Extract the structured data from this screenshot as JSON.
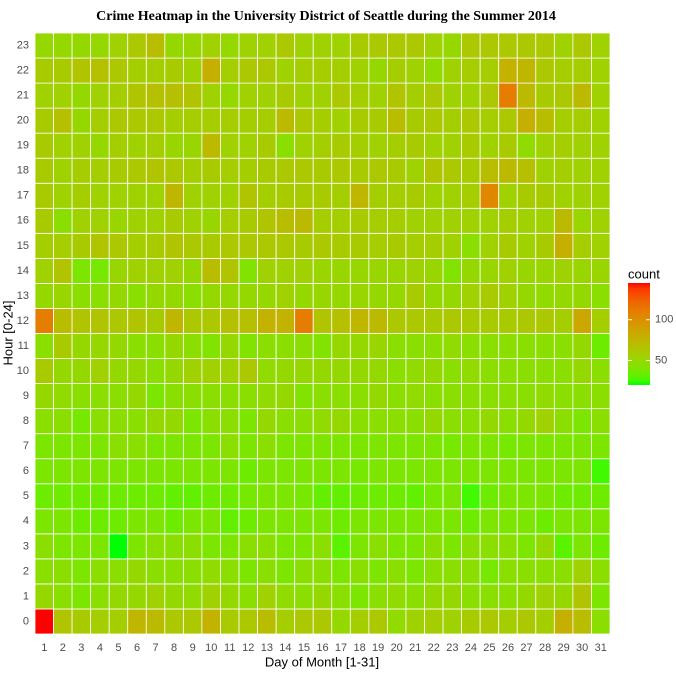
{
  "chart_data": {
    "type": "heatmap",
    "title": "Crime Heatmap in the University District of Seattle during the Summer 2014",
    "x_label": "Day of Month [1-31]",
    "y_label": "Hour [0-24]",
    "legend_title": "count",
    "x_categories": [
      1,
      2,
      3,
      4,
      5,
      6,
      7,
      8,
      9,
      10,
      11,
      12,
      13,
      14,
      15,
      16,
      17,
      18,
      19,
      20,
      21,
      22,
      23,
      24,
      25,
      26,
      27,
      28,
      29,
      30,
      31
    ],
    "y_categories": [
      0,
      1,
      2,
      3,
      4,
      5,
      6,
      7,
      8,
      9,
      10,
      11,
      12,
      13,
      14,
      15,
      16,
      17,
      18,
      19,
      20,
      21,
      22,
      23
    ],
    "low_color": "#00ff00",
    "high_color": "#ff0000",
    "fill_lim": [
      20,
      145
    ],
    "fill_ticks": [
      50,
      100
    ],
    "values": [
      [
        145,
        65,
        60,
        58,
        58,
        75,
        72,
        62,
        62,
        78,
        60,
        62,
        70,
        58,
        62,
        62,
        50,
        58,
        62,
        48,
        55,
        58,
        55,
        60,
        62,
        58,
        62,
        58,
        80,
        70,
        45
      ],
      [
        50,
        45,
        40,
        45,
        50,
        50,
        55,
        50,
        48,
        55,
        50,
        45,
        55,
        48,
        45,
        50,
        45,
        40,
        45,
        48,
        45,
        50,
        50,
        45,
        45,
        45,
        50,
        55,
        50,
        65,
        40
      ],
      [
        45,
        45,
        40,
        45,
        45,
        50,
        45,
        45,
        45,
        48,
        45,
        40,
        45,
        40,
        45,
        45,
        40,
        45,
        40,
        45,
        40,
        45,
        45,
        45,
        38,
        45,
        45,
        45,
        45,
        55,
        45
      ],
      [
        45,
        40,
        40,
        40,
        20,
        40,
        45,
        45,
        45,
        40,
        40,
        45,
        45,
        40,
        40,
        45,
        30,
        40,
        45,
        40,
        40,
        45,
        40,
        45,
        45,
        45,
        40,
        50,
        30,
        40,
        35
      ],
      [
        40,
        40,
        35,
        35,
        35,
        40,
        40,
        35,
        40,
        40,
        32,
        35,
        40,
        40,
        40,
        40,
        35,
        40,
        40,
        40,
        40,
        40,
        40,
        35,
        40,
        40,
        40,
        35,
        40,
        40,
        40
      ],
      [
        35,
        35,
        35,
        35,
        35,
        35,
        35,
        32,
        32,
        35,
        35,
        38,
        40,
        40,
        38,
        32,
        32,
        35,
        35,
        35,
        32,
        38,
        40,
        25,
        35,
        40,
        40,
        40,
        35,
        35,
        35
      ],
      [
        40,
        40,
        40,
        40,
        40,
        40,
        40,
        40,
        40,
        40,
        40,
        35,
        40,
        40,
        40,
        40,
        40,
        38,
        40,
        40,
        40,
        40,
        40,
        40,
        40,
        40,
        40,
        40,
        40,
        40,
        25
      ],
      [
        40,
        40,
        40,
        40,
        45,
        45,
        40,
        40,
        40,
        40,
        45,
        40,
        45,
        40,
        40,
        40,
        40,
        40,
        40,
        40,
        40,
        40,
        38,
        40,
        40,
        38,
        40,
        40,
        40,
        40,
        40
      ],
      [
        45,
        45,
        38,
        45,
        45,
        45,
        50,
        50,
        40,
        45,
        45,
        40,
        50,
        45,
        45,
        48,
        50,
        45,
        45,
        45,
        45,
        50,
        45,
        45,
        50,
        45,
        50,
        55,
        45,
        40,
        45
      ],
      [
        50,
        48,
        45,
        45,
        45,
        50,
        40,
        45,
        45,
        45,
        45,
        45,
        48,
        50,
        42,
        45,
        45,
        45,
        50,
        45,
        48,
        45,
        45,
        45,
        45,
        45,
        45,
        48,
        45,
        45,
        45
      ],
      [
        60,
        50,
        50,
        55,
        50,
        50,
        45,
        50,
        55,
        55,
        55,
        62,
        48,
        50,
        50,
        50,
        50,
        50,
        50,
        45,
        48,
        50,
        45,
        48,
        45,
        45,
        45,
        45,
        45,
        50,
        45
      ],
      [
        45,
        60,
        50,
        50,
        50,
        45,
        45,
        50,
        45,
        42,
        50,
        42,
        45,
        45,
        45,
        42,
        50,
        50,
        52,
        45,
        45,
        45,
        48,
        45,
        45,
        45,
        45,
        45,
        45,
        50,
        35
      ],
      [
        110,
        70,
        65,
        65,
        62,
        65,
        60,
        75,
        62,
        62,
        68,
        68,
        78,
        78,
        110,
        65,
        68,
        75,
        72,
        62,
        62,
        60,
        62,
        60,
        60,
        60,
        62,
        62,
        58,
        85,
        58
      ],
      [
        50,
        52,
        45,
        45,
        50,
        45,
        50,
        50,
        45,
        50,
        50,
        50,
        50,
        55,
        50,
        52,
        50,
        52,
        50,
        50,
        60,
        50,
        50,
        55,
        60,
        55,
        50,
        48,
        50,
        50,
        45
      ],
      [
        55,
        65,
        40,
        38,
        52,
        55,
        55,
        55,
        50,
        70,
        65,
        42,
        55,
        55,
        55,
        52,
        52,
        52,
        52,
        52,
        55,
        52,
        42,
        50,
        52,
        55,
        52,
        52,
        55,
        52,
        52
      ],
      [
        58,
        58,
        60,
        65,
        62,
        58,
        60,
        65,
        62,
        60,
        62,
        62,
        62,
        62,
        60,
        62,
        60,
        60,
        58,
        60,
        58,
        58,
        55,
        45,
        55,
        60,
        55,
        60,
        80,
        58,
        55
      ],
      [
        60,
        45,
        55,
        55,
        52,
        55,
        55,
        60,
        55,
        52,
        58,
        60,
        65,
        70,
        72,
        58,
        58,
        60,
        58,
        58,
        55,
        55,
        55,
        55,
        55,
        58,
        55,
        55,
        72,
        52,
        55
      ],
      [
        60,
        55,
        58,
        55,
        55,
        55,
        55,
        75,
        55,
        55,
        55,
        65,
        58,
        60,
        60,
        60,
        58,
        75,
        58,
        58,
        60,
        55,
        55,
        58,
        105,
        55,
        60,
        60,
        55,
        55,
        55
      ],
      [
        60,
        55,
        58,
        58,
        60,
        62,
        65,
        62,
        58,
        60,
        58,
        58,
        60,
        62,
        62,
        60,
        62,
        60,
        62,
        60,
        55,
        65,
        62,
        60,
        70,
        72,
        68,
        55,
        58,
        55,
        55
      ],
      [
        60,
        55,
        55,
        50,
        58,
        55,
        58,
        52,
        52,
        72,
        55,
        55,
        60,
        45,
        55,
        58,
        60,
        58,
        55,
        58,
        60,
        55,
        55,
        60,
        55,
        60,
        48,
        55,
        58,
        55,
        55
      ],
      [
        60,
        68,
        50,
        58,
        62,
        62,
        62,
        58,
        58,
        58,
        58,
        58,
        58,
        72,
        62,
        58,
        55,
        60,
        60,
        70,
        60,
        62,
        58,
        62,
        58,
        62,
        80,
        70,
        58,
        58,
        55
      ],
      [
        55,
        55,
        50,
        55,
        58,
        65,
        68,
        68,
        65,
        55,
        50,
        55,
        55,
        60,
        55,
        55,
        62,
        58,
        55,
        65,
        58,
        62,
        55,
        55,
        62,
        110,
        72,
        60,
        62,
        72,
        55
      ],
      [
        60,
        60,
        65,
        68,
        62,
        58,
        58,
        60,
        55,
        80,
        58,
        62,
        62,
        55,
        58,
        58,
        58,
        55,
        50,
        58,
        55,
        48,
        55,
        58,
        58,
        78,
        75,
        62,
        58,
        58,
        55
      ],
      [
        50,
        50,
        50,
        50,
        55,
        62,
        70,
        50,
        52,
        55,
        50,
        55,
        55,
        62,
        55,
        55,
        55,
        60,
        62,
        62,
        62,
        55,
        50,
        62,
        62,
        62,
        62,
        62,
        55,
        62,
        55
      ]
    ]
  }
}
